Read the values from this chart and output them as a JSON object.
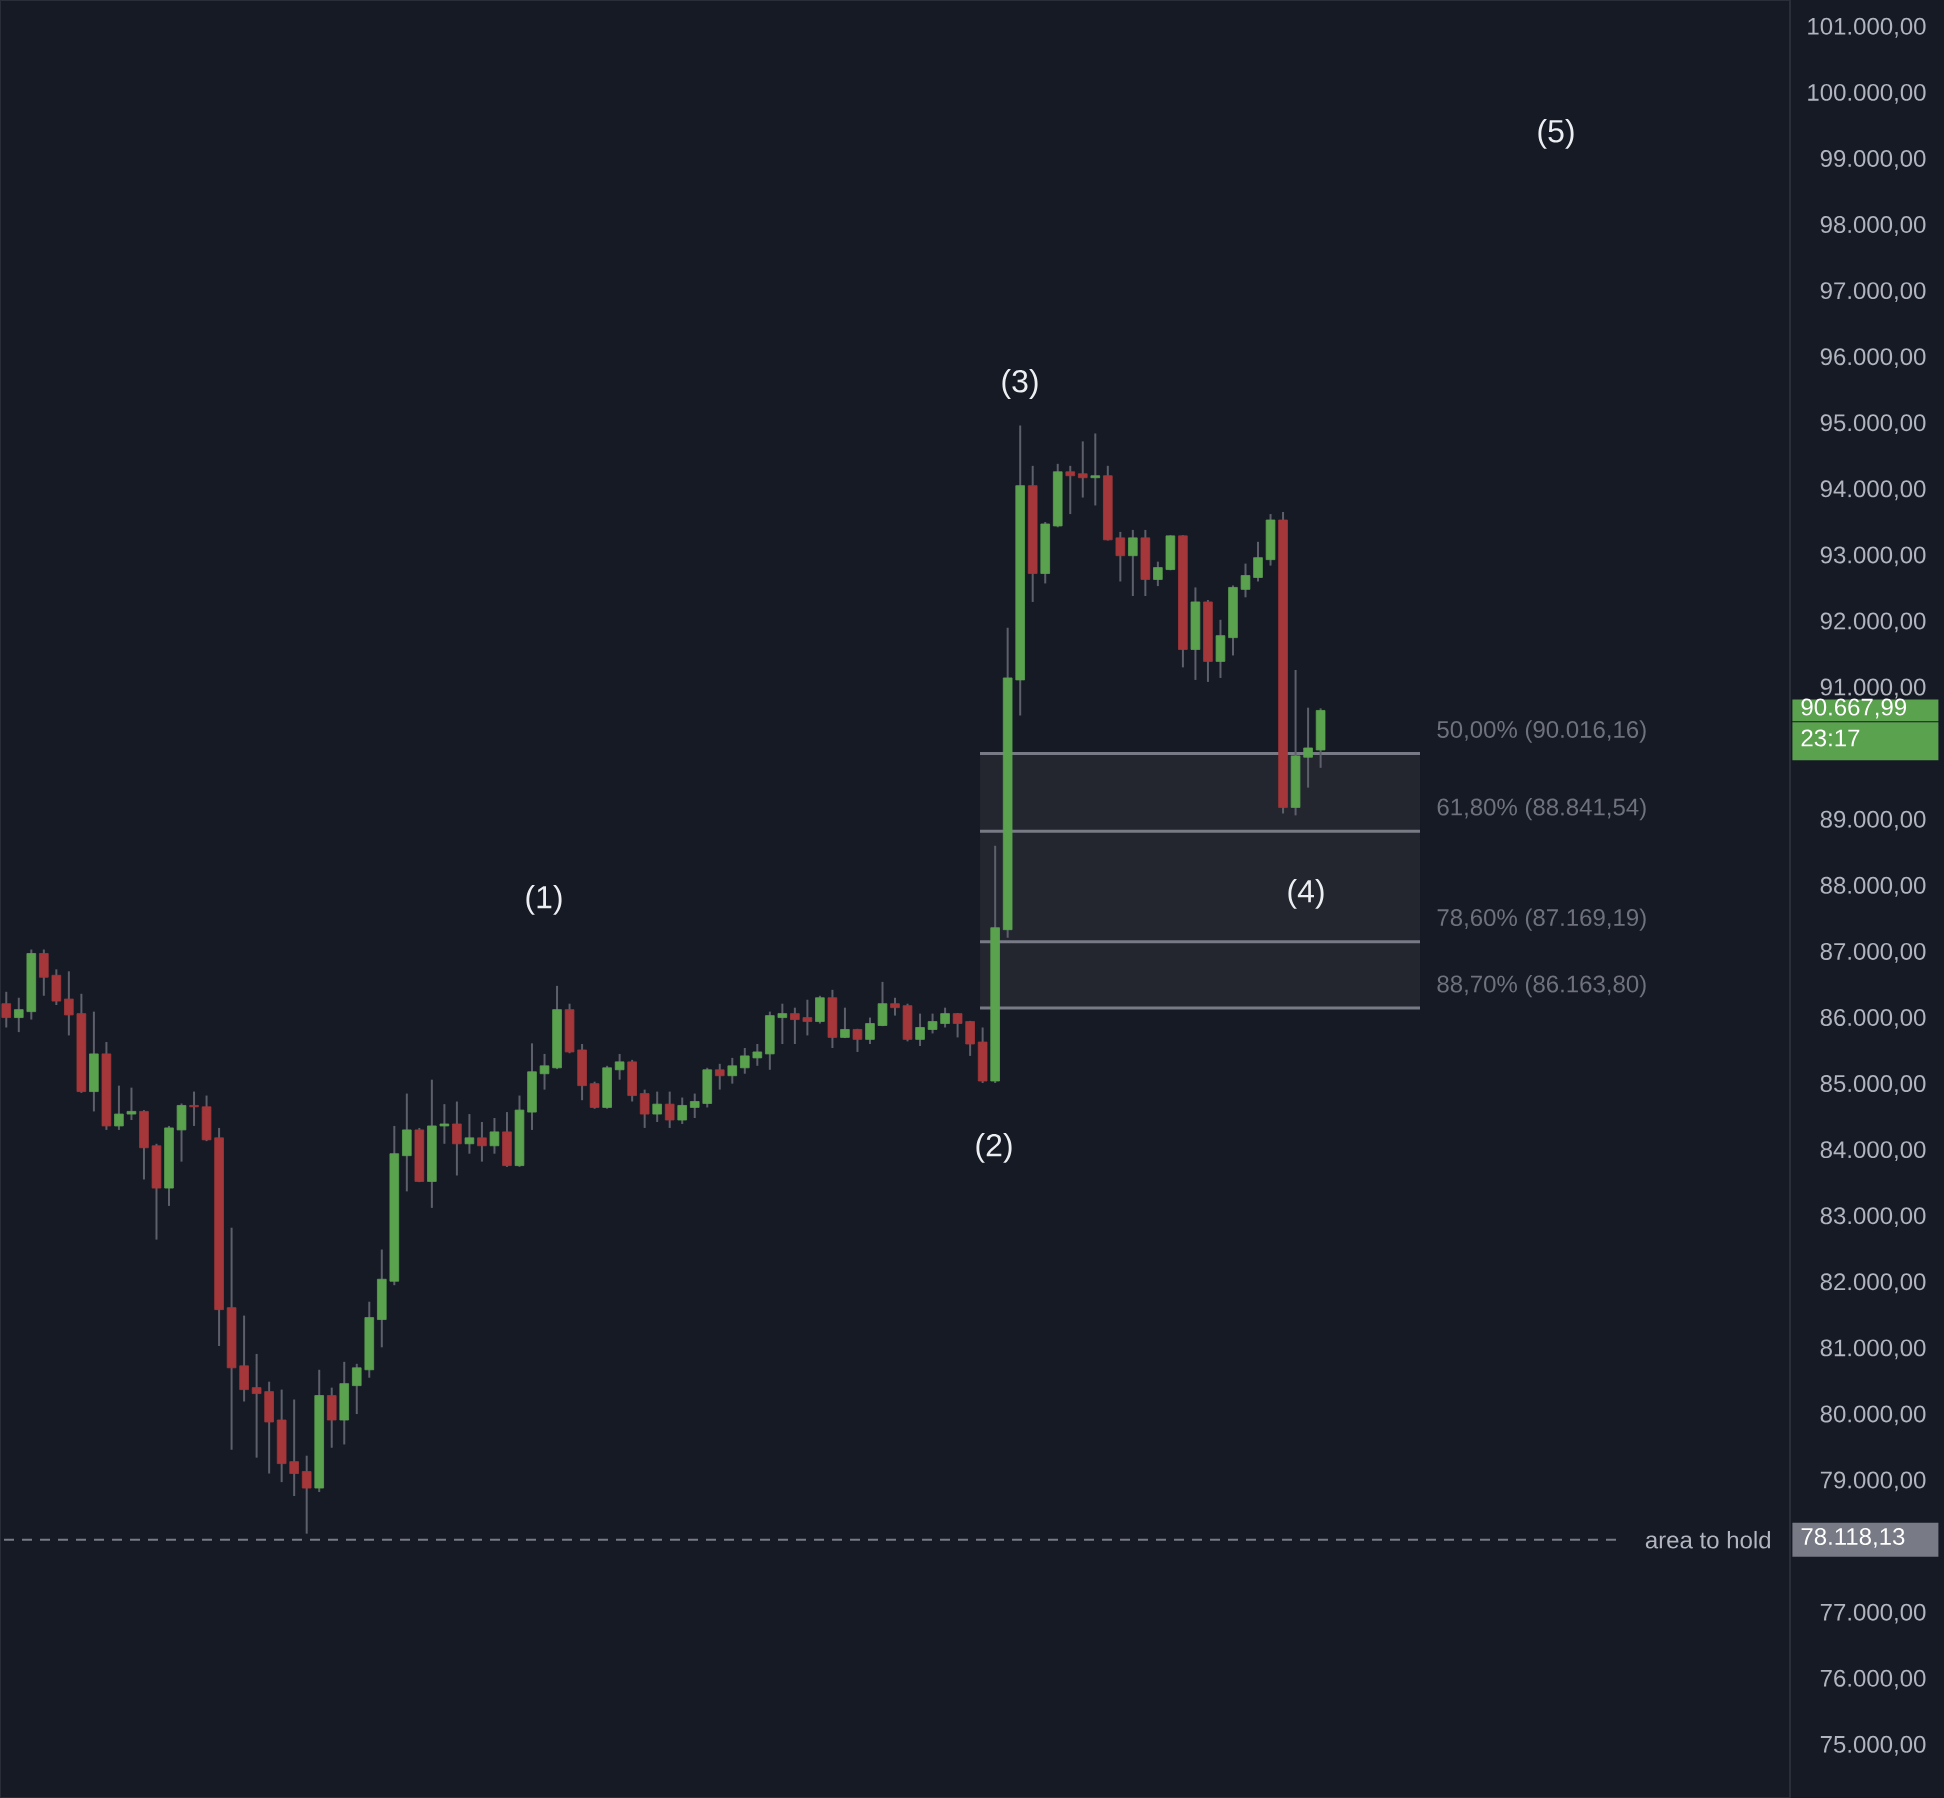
{
  "chart_data": {
    "type": "candlestick",
    "categories": [
      null,
      null,
      null,
      null,
      null,
      null,
      null,
      null,
      null,
      null,
      null,
      null,
      null,
      null,
      null,
      null,
      null,
      null,
      null,
      null,
      null,
      null,
      null,
      null,
      null,
      null,
      null,
      null,
      null,
      null,
      null,
      null,
      null,
      null,
      null,
      null,
      null,
      null,
      null,
      null,
      null,
      null,
      null,
      null,
      null,
      null,
      null,
      null,
      null,
      null,
      null,
      null,
      null,
      null,
      null,
      null,
      null,
      null,
      null,
      null,
      null,
      null,
      null,
      null,
      null,
      null,
      null,
      null,
      null,
      null,
      null,
      null,
      null,
      null,
      null,
      null,
      null,
      null,
      null,
      null,
      null,
      null,
      null,
      null,
      null,
      null,
      null,
      null,
      null,
      null,
      null,
      null,
      null,
      null,
      null,
      null,
      null,
      null,
      null,
      null,
      null,
      null,
      null,
      null,
      null,
      null,
      null,
      null,
      null,
      null,
      null,
      null,
      null,
      null,
      null,
      null,
      null,
      null,
      null,
      null,
      null,
      null,
      null,
      null,
      null,
      null,
      null,
      null,
      null,
      null,
      null,
      null,
      null,
      null,
      null,
      null,
      null,
      null,
      null,
      null,
      null,
      null,
      null
    ],
    "ohlc": [
      [
        86230,
        86410,
        85870,
        86020
      ],
      [
        86020,
        86320,
        85800,
        86140
      ],
      [
        86110,
        87050,
        85990,
        86990
      ],
      [
        86990,
        87050,
        86350,
        86630
      ],
      [
        86660,
        86750,
        86210,
        86270
      ],
      [
        86300,
        86720,
        85750,
        86060
      ],
      [
        86080,
        86380,
        84880,
        84900
      ],
      [
        84900,
        86110,
        84600,
        85470
      ],
      [
        85470,
        85650,
        84320,
        84380
      ],
      [
        84380,
        84990,
        84320,
        84560
      ],
      [
        84560,
        84960,
        84470,
        84600
      ],
      [
        84600,
        84620,
        83570,
        84050
      ],
      [
        84080,
        84110,
        82660,
        83440
      ],
      [
        83440,
        84380,
        83170,
        84350
      ],
      [
        84320,
        84720,
        83840,
        84690
      ],
      [
        84690,
        84900,
        84380,
        84670
      ],
      [
        84670,
        84840,
        84150,
        84170
      ],
      [
        84200,
        84350,
        81050,
        81600
      ],
      [
        81630,
        82840,
        79480,
        80720
      ],
      [
        80750,
        81510,
        80210,
        80390
      ],
      [
        80420,
        80930,
        79360,
        80330
      ],
      [
        80360,
        80510,
        79120,
        79900
      ],
      [
        79930,
        80390,
        78990,
        79270
      ],
      [
        79300,
        80240,
        78780,
        79120
      ],
      [
        79150,
        79390,
        78210,
        78900
      ],
      [
        78900,
        80690,
        78840,
        80300
      ],
      [
        80300,
        80420,
        79510,
        79930
      ],
      [
        79930,
        80810,
        79560,
        80480
      ],
      [
        80450,
        80780,
        80020,
        80720
      ],
      [
        80690,
        81720,
        80570,
        81480
      ],
      [
        81450,
        82510,
        81030,
        82060
      ],
      [
        82030,
        84380,
        81970,
        83960
      ],
      [
        83930,
        84870,
        83390,
        84320
      ],
      [
        84320,
        84350,
        83530,
        83540
      ],
      [
        83540,
        85080,
        83140,
        84380
      ],
      [
        84380,
        84710,
        84110,
        84410
      ],
      [
        84410,
        84750,
        83630,
        84110
      ],
      [
        84110,
        84560,
        83960,
        84200
      ],
      [
        84200,
        84440,
        83840,
        84080
      ],
      [
        84080,
        84500,
        83960,
        84290
      ],
      [
        84290,
        84590,
        83760,
        83780
      ],
      [
        83780,
        84840,
        83760,
        84620
      ],
      [
        84590,
        85630,
        84320,
        85200
      ],
      [
        85170,
        85470,
        84930,
        85290
      ],
      [
        85260,
        86500,
        85240,
        86140
      ],
      [
        86140,
        86230,
        85480,
        85500
      ],
      [
        85530,
        85620,
        84770,
        84990
      ],
      [
        85020,
        85050,
        84640,
        84660
      ],
      [
        84660,
        85290,
        84640,
        85260
      ],
      [
        85230,
        85470,
        85080,
        85350
      ],
      [
        85350,
        85380,
        84750,
        84840
      ],
      [
        84870,
        84930,
        84350,
        84560
      ],
      [
        84560,
        84900,
        84440,
        84710
      ],
      [
        84710,
        84900,
        84350,
        84470
      ],
      [
        84470,
        84810,
        84410,
        84690
      ],
      [
        84660,
        84870,
        84500,
        84750
      ],
      [
        84720,
        85260,
        84660,
        85230
      ],
      [
        85230,
        85320,
        84930,
        85140
      ],
      [
        85140,
        85410,
        85020,
        85290
      ],
      [
        85260,
        85560,
        85170,
        85440
      ],
      [
        85410,
        85620,
        85290,
        85500
      ],
      [
        85470,
        86110,
        85230,
        86050
      ],
      [
        86020,
        86230,
        85620,
        86080
      ],
      [
        86080,
        86170,
        85620,
        85990
      ],
      [
        86020,
        86290,
        85750,
        85960
      ],
      [
        85960,
        86350,
        85930,
        86320
      ],
      [
        86320,
        86440,
        85560,
        85720
      ],
      [
        85720,
        86170,
        85710,
        85840
      ],
      [
        85840,
        85850,
        85500,
        85690
      ],
      [
        85690,
        86020,
        85620,
        85930
      ],
      [
        85900,
        86560,
        85890,
        86230
      ],
      [
        86230,
        86320,
        86050,
        86170
      ],
      [
        86200,
        86230,
        85660,
        85690
      ],
      [
        85690,
        86080,
        85590,
        85870
      ],
      [
        85840,
        86080,
        85780,
        85960
      ],
      [
        85930,
        86170,
        85870,
        86080
      ],
      [
        86080,
        86090,
        85720,
        85930
      ],
      [
        85960,
        85970,
        85440,
        85620
      ],
      [
        85650,
        85870,
        85030,
        85060
      ],
      [
        85060,
        88620,
        85030,
        87380
      ],
      [
        87350,
        91920,
        87230,
        91160
      ],
      [
        91130,
        94980,
        90590,
        94070
      ],
      [
        94070,
        94370,
        92310,
        92740
      ],
      [
        92740,
        93520,
        92590,
        93490
      ],
      [
        93460,
        94400,
        93440,
        94280
      ],
      [
        94280,
        94370,
        93640,
        94220
      ],
      [
        94250,
        94740,
        93890,
        94190
      ],
      [
        94190,
        94860,
        93770,
        94220
      ],
      [
        94220,
        94370,
        93240,
        93250
      ],
      [
        93280,
        93370,
        92620,
        93010
      ],
      [
        93010,
        93400,
        92400,
        93280
      ],
      [
        93280,
        93400,
        92400,
        92650
      ],
      [
        92650,
        92920,
        92550,
        92830
      ],
      [
        92800,
        93320,
        92790,
        93310
      ],
      [
        93310,
        93320,
        91320,
        91590
      ],
      [
        91590,
        92530,
        91130,
        92310
      ],
      [
        92310,
        92340,
        91100,
        91410
      ],
      [
        91410,
        92040,
        91160,
        91800
      ],
      [
        91770,
        92560,
        91500,
        92530
      ],
      [
        92500,
        92890,
        92380,
        92710
      ],
      [
        92680,
        93220,
        92620,
        92980
      ],
      [
        92950,
        93640,
        92860,
        93550
      ],
      [
        93550,
        93670,
        89110,
        89200
      ],
      [
        89200,
        91280,
        89080,
        89980
      ],
      [
        89960,
        90710,
        89500,
        90100
      ],
      [
        90070,
        90700,
        89800,
        90667.99
      ],
      null,
      null,
      null,
      null,
      null,
      null,
      null,
      null,
      null,
      null,
      null,
      null,
      null,
      null,
      null,
      null,
      null,
      null,
      null,
      null,
      null,
      null,
      null,
      null,
      null,
      null,
      null,
      null,
      null,
      null,
      null,
      null,
      null,
      null,
      null,
      null,
      null
    ],
    "colors": [
      "#a5373a",
      "#5ba24f",
      "#5ba24f",
      "#a5373a",
      "#a5373a",
      "#a5373a",
      "#a5373a",
      "#5ba24f",
      "#a5373a",
      "#5ba24f",
      "#5ba24f",
      "#a5373a",
      "#a5373a",
      "#5ba24f",
      "#5ba24f",
      "#a5373a",
      "#a5373a",
      "#a5373a",
      "#a5373a",
      "#a5373a",
      "#a5373a",
      "#a5373a",
      "#a5373a",
      "#a5373a",
      "#a5373a",
      "#5ba24f",
      "#a5373a",
      "#5ba24f",
      "#5ba24f",
      "#5ba24f",
      "#5ba24f",
      "#5ba24f",
      "#5ba24f",
      "#a5373a",
      "#5ba24f",
      "#5ba24f",
      "#a5373a",
      "#5ba24f",
      "#a5373a",
      "#5ba24f",
      "#a5373a",
      "#5ba24f",
      "#5ba24f",
      "#5ba24f",
      "#5ba24f",
      "#a5373a",
      "#a5373a",
      "#a5373a",
      "#5ba24f",
      "#5ba24f",
      "#a5373a",
      "#a5373a",
      "#5ba24f",
      "#a5373a",
      "#5ba24f",
      "#5ba24f",
      "#5ba24f",
      "#a5373a",
      "#5ba24f",
      "#5ba24f",
      "#5ba24f",
      "#5ba24f",
      "#5ba24f",
      "#a5373a",
      "#a5373a",
      "#5ba24f",
      "#a5373a",
      "#5ba24f",
      "#a5373a",
      "#5ba24f",
      "#5ba24f",
      "#a5373a",
      "#a5373a",
      "#5ba24f",
      "#5ba24f",
      "#5ba24f",
      "#a5373a",
      "#a5373a",
      "#a5373a",
      "#5ba24f",
      "#5ba24f",
      "#5ba24f",
      "#a5373a",
      "#5ba24f",
      "#5ba24f",
      "#a5373a",
      "#a5373a",
      "#5ba24f",
      "#a5373a",
      "#a5373a",
      "#5ba24f",
      "#a5373a",
      "#5ba24f",
      "#5ba24f",
      "#a5373a",
      "#5ba24f",
      "#a5373a",
      "#5ba24f",
      "#5ba24f",
      "#5ba24f",
      "#5ba24f",
      "#5ba24f",
      "#a5373a",
      "#5ba24f",
      "#5ba24f",
      "#5ba24f",
      null,
      null,
      null,
      null,
      null,
      null,
      null,
      null,
      null,
      null,
      null,
      null,
      null,
      null,
      null,
      null,
      null,
      null,
      null,
      null,
      null,
      null,
      null,
      null,
      null,
      null,
      null,
      null,
      null,
      null,
      null,
      null,
      null,
      null,
      null,
      null,
      null
    ],
    "ylim": [
      74210,
      101420
    ],
    "yticks": [
      {
        "value": 75000,
        "label": "75.000,00"
      },
      {
        "value": 76000,
        "label": "76.000,00"
      },
      {
        "value": 77000,
        "label": "77.000,00"
      },
      {
        "value": 79000,
        "label": "79.000,00"
      },
      {
        "value": 80000,
        "label": "80.000,00"
      },
      {
        "value": 81000,
        "label": "81.000,00"
      },
      {
        "value": 82000,
        "label": "82.000,00"
      },
      {
        "value": 83000,
        "label": "83.000,00"
      },
      {
        "value": 84000,
        "label": "84.000,00"
      },
      {
        "value": 85000,
        "label": "85.000,00"
      },
      {
        "value": 86000,
        "label": "86.000,00"
      },
      {
        "value": 87000,
        "label": "87.000,00"
      },
      {
        "value": 88000,
        "label": "88.000,00"
      },
      {
        "value": 89000,
        "label": "89.000,00"
      },
      {
        "value": 91000,
        "label": "91.000,00"
      },
      {
        "value": 92000,
        "label": "92.000,00"
      },
      {
        "value": 93000,
        "label": "93.000,00"
      },
      {
        "value": 94000,
        "label": "94.000,00"
      },
      {
        "value": 95000,
        "label": "95.000,00"
      },
      {
        "value": 96000,
        "label": "96.000,00"
      },
      {
        "value": 97000,
        "label": "97.000,00"
      },
      {
        "value": 98000,
        "label": "98.000,00"
      },
      {
        "value": 99000,
        "label": "99.000,00"
      },
      {
        "value": 100000,
        "label": "100.000,00"
      },
      {
        "value": 101000,
        "label": "101.000,00"
      }
    ],
    "tick_labels": "y",
    "ref_lines": [
      {
        "axis": "y",
        "value": 90016.16,
        "label": "50,00% (90.016,16)",
        "color": "#787b86",
        "line_style": "solid"
      },
      {
        "axis": "y",
        "value": 88841.54,
        "label": "61,80% (88.841,54)",
        "color": "#787b86",
        "line_style": "solid"
      },
      {
        "axis": "y",
        "value": 87169.19,
        "label": "78,60% (87.169,19)",
        "color": "#787b86",
        "line_style": "solid"
      },
      {
        "axis": "y",
        "value": 86163.8,
        "label": "88,70% (86.163,80)",
        "color": "#787b86",
        "line_style": "solid"
      },
      {
        "axis": "y",
        "value": 78118.13,
        "label": "area to hold",
        "color": "#787b86",
        "line_style": "dashed"
      }
    ],
    "bands": [
      {
        "axis": "y",
        "from": 88841.54,
        "to": 90016.16,
        "color": "#23262f"
      },
      {
        "axis": "y",
        "from": 87169.19,
        "to": 88841.54,
        "color": "#23262f"
      },
      {
        "axis": "y",
        "from": 86163.8,
        "to": 87169.19,
        "color": "#23262f"
      }
    ],
    "annotations": [
      "(1)",
      "(2)",
      "(3)",
      "(4)",
      "(5)",
      "90.667,99",
      "23:17",
      "78.118,13"
    ]
  }
}
